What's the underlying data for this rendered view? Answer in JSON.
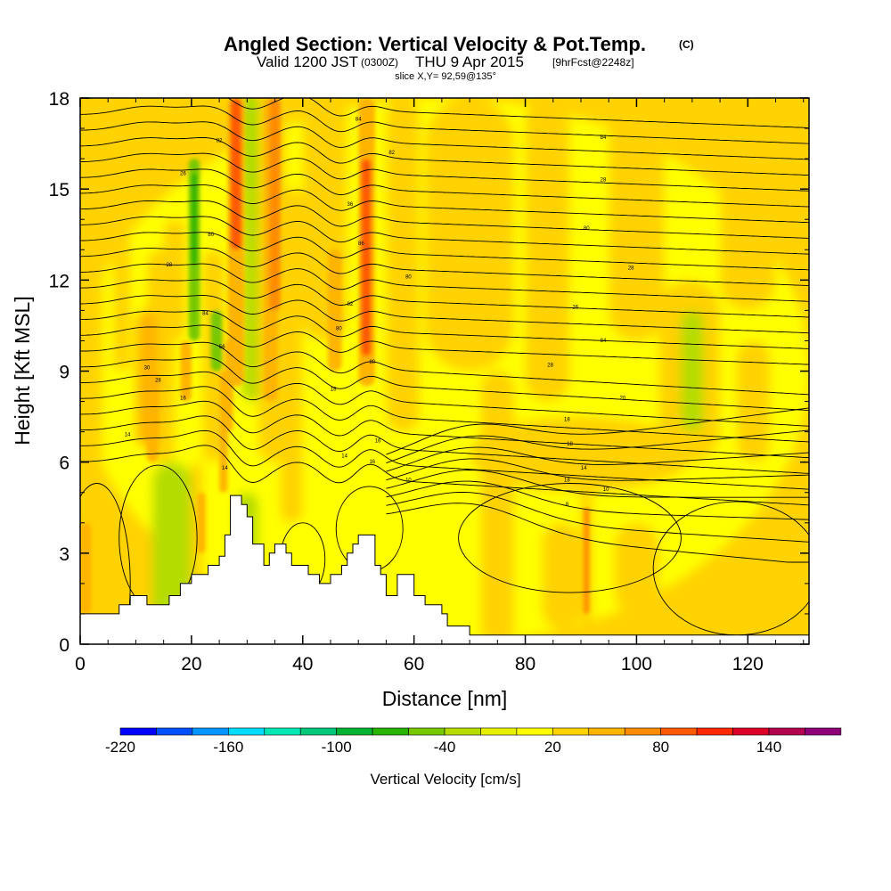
{
  "title": {
    "main": "Angled Section: Vertical Velocity & Pot.Temp.",
    "copyright": "(C)",
    "valid_prefix": "Valid 1200 JST",
    "utc": "(0300Z)",
    "valid_date": "THU 9 Apr 2015",
    "forecast": "[9hrFcst@2248z]",
    "slice": "slice X,Y= 92,59@135°"
  },
  "chart_data": {
    "type": "heatmap",
    "xlabel": "Distance [nm]",
    "ylabel": "Height [Kft MSL]",
    "xlim": [
      0,
      131
    ],
    "ylim": [
      0,
      18
    ],
    "x_ticks": [
      "0",
      "20",
      "40",
      "60",
      "80",
      "100",
      "120"
    ],
    "y_ticks": [
      "0",
      "3",
      "6",
      "9",
      "12",
      "15",
      "18"
    ],
    "colorbar": {
      "label": "Vertical Velocity [cm/s]",
      "min": -220,
      "max": 140,
      "step": 20,
      "tick_labels": [
        "-220",
        "-160",
        "-100",
        "-40",
        "20",
        "80",
        "140"
      ],
      "colors": [
        "#0000ff",
        "#0050ff",
        "#0096ff",
        "#00dcff",
        "#00e6b4",
        "#00c878",
        "#00b432",
        "#28b400",
        "#78c800",
        "#b4dc00",
        "#e6f000",
        "#ffff00",
        "#ffd200",
        "#ffb400",
        "#ff8c00",
        "#ff5a00",
        "#ff2800",
        "#dc0028",
        "#b40050",
        "#8c0078"
      ]
    },
    "terrain_kft": [
      [
        0,
        1.0
      ],
      [
        7,
        1.0
      ],
      [
        7,
        1.3
      ],
      [
        9,
        1.3
      ],
      [
        9,
        1.6
      ],
      [
        12,
        1.6
      ],
      [
        12,
        1.3
      ],
      [
        16,
        1.3
      ],
      [
        16,
        1.6
      ],
      [
        18,
        1.6
      ],
      [
        18,
        2.0
      ],
      [
        20,
        2.0
      ],
      [
        20,
        2.3
      ],
      [
        23,
        2.3
      ],
      [
        23,
        2.6
      ],
      [
        25,
        2.6
      ],
      [
        25,
        2.9
      ],
      [
        26,
        2.9
      ],
      [
        26,
        3.6
      ],
      [
        27,
        3.6
      ],
      [
        27,
        4.9
      ],
      [
        29,
        4.9
      ],
      [
        29,
        4.6
      ],
      [
        30,
        4.6
      ],
      [
        30,
        4.2
      ],
      [
        31,
        4.2
      ],
      [
        31,
        3.3
      ],
      [
        33,
        3.3
      ],
      [
        33,
        2.6
      ],
      [
        34,
        2.6
      ],
      [
        34,
        3.0
      ],
      [
        35,
        3.0
      ],
      [
        35,
        3.3
      ],
      [
        37,
        3.3
      ],
      [
        37,
        3.0
      ],
      [
        38,
        3.0
      ],
      [
        38,
        2.6
      ],
      [
        41,
        2.6
      ],
      [
        41,
        2.3
      ],
      [
        43,
        2.3
      ],
      [
        43,
        2.0
      ],
      [
        45,
        2.0
      ],
      [
        45,
        2.3
      ],
      [
        47,
        2.3
      ],
      [
        47,
        2.6
      ],
      [
        48,
        2.6
      ],
      [
        48,
        3.0
      ],
      [
        49,
        3.0
      ],
      [
        49,
        3.3
      ],
      [
        50,
        3.3
      ],
      [
        50,
        3.6
      ],
      [
        53,
        3.6
      ],
      [
        53,
        2.6
      ],
      [
        54,
        2.6
      ],
      [
        54,
        2.3
      ],
      [
        55,
        2.3
      ],
      [
        55,
        1.6
      ],
      [
        57,
        1.6
      ],
      [
        57,
        2.3
      ],
      [
        60,
        2.3
      ],
      [
        60,
        1.6
      ],
      [
        62,
        1.6
      ],
      [
        62,
        1.3
      ],
      [
        65,
        1.3
      ],
      [
        65,
        1.0
      ],
      [
        66,
        1.0
      ],
      [
        66,
        0.6
      ],
      [
        70,
        0.6
      ],
      [
        70,
        0.3
      ],
      [
        131,
        0.3
      ]
    ],
    "contour_labels": [
      {
        "x": 50.0,
        "y": 17.3,
        "text": "84"
      },
      {
        "x": 94.0,
        "y": 16.7,
        "text": "84"
      },
      {
        "x": 25.0,
        "y": 16.6,
        "text": "82"
      },
      {
        "x": 56.0,
        "y": 16.2,
        "text": "82"
      },
      {
        "x": 18.5,
        "y": 15.5,
        "text": "26"
      },
      {
        "x": 94.0,
        "y": 15.3,
        "text": "28"
      },
      {
        "x": 48.5,
        "y": 14.5,
        "text": "36"
      },
      {
        "x": 91.0,
        "y": 13.7,
        "text": "80"
      },
      {
        "x": 23.5,
        "y": 13.5,
        "text": "80"
      },
      {
        "x": 50.5,
        "y": 13.2,
        "text": "86"
      },
      {
        "x": 16.0,
        "y": 12.5,
        "text": "28"
      },
      {
        "x": 59.0,
        "y": 12.1,
        "text": "80"
      },
      {
        "x": 99.0,
        "y": 12.4,
        "text": "28"
      },
      {
        "x": 48.5,
        "y": 11.2,
        "text": "82"
      },
      {
        "x": 89.0,
        "y": 11.1,
        "text": "26"
      },
      {
        "x": 22.5,
        "y": 10.9,
        "text": "84"
      },
      {
        "x": 46.5,
        "y": 10.4,
        "text": "80"
      },
      {
        "x": 94.0,
        "y": 10.0,
        "text": "84"
      },
      {
        "x": 25.5,
        "y": 9.8,
        "text": "56"
      },
      {
        "x": 52.5,
        "y": 9.3,
        "text": "80"
      },
      {
        "x": 84.5,
        "y": 9.2,
        "text": "28"
      },
      {
        "x": 12.0,
        "y": 9.1,
        "text": "30"
      },
      {
        "x": 14.0,
        "y": 8.7,
        "text": "28"
      },
      {
        "x": 45.5,
        "y": 8.4,
        "text": "18"
      },
      {
        "x": 18.5,
        "y": 8.1,
        "text": "16"
      },
      {
        "x": 97.5,
        "y": 8.1,
        "text": "20"
      },
      {
        "x": 87.5,
        "y": 7.4,
        "text": "18"
      },
      {
        "x": 8.5,
        "y": 6.9,
        "text": "14"
      },
      {
        "x": 88.0,
        "y": 6.6,
        "text": "18"
      },
      {
        "x": 53.5,
        "y": 6.7,
        "text": "16"
      },
      {
        "x": 47.5,
        "y": 6.2,
        "text": "14"
      },
      {
        "x": 52.5,
        "y": 6.0,
        "text": "16"
      },
      {
        "x": 90.5,
        "y": 5.8,
        "text": "14"
      },
      {
        "x": 26.0,
        "y": 5.8,
        "text": "14"
      },
      {
        "x": 59.0,
        "y": 5.4,
        "text": "10"
      },
      {
        "x": 87.5,
        "y": 5.4,
        "text": "18"
      },
      {
        "x": 94.5,
        "y": 5.1,
        "text": "10"
      },
      {
        "x": 87.5,
        "y": 4.6,
        "text": "8"
      }
    ]
  }
}
